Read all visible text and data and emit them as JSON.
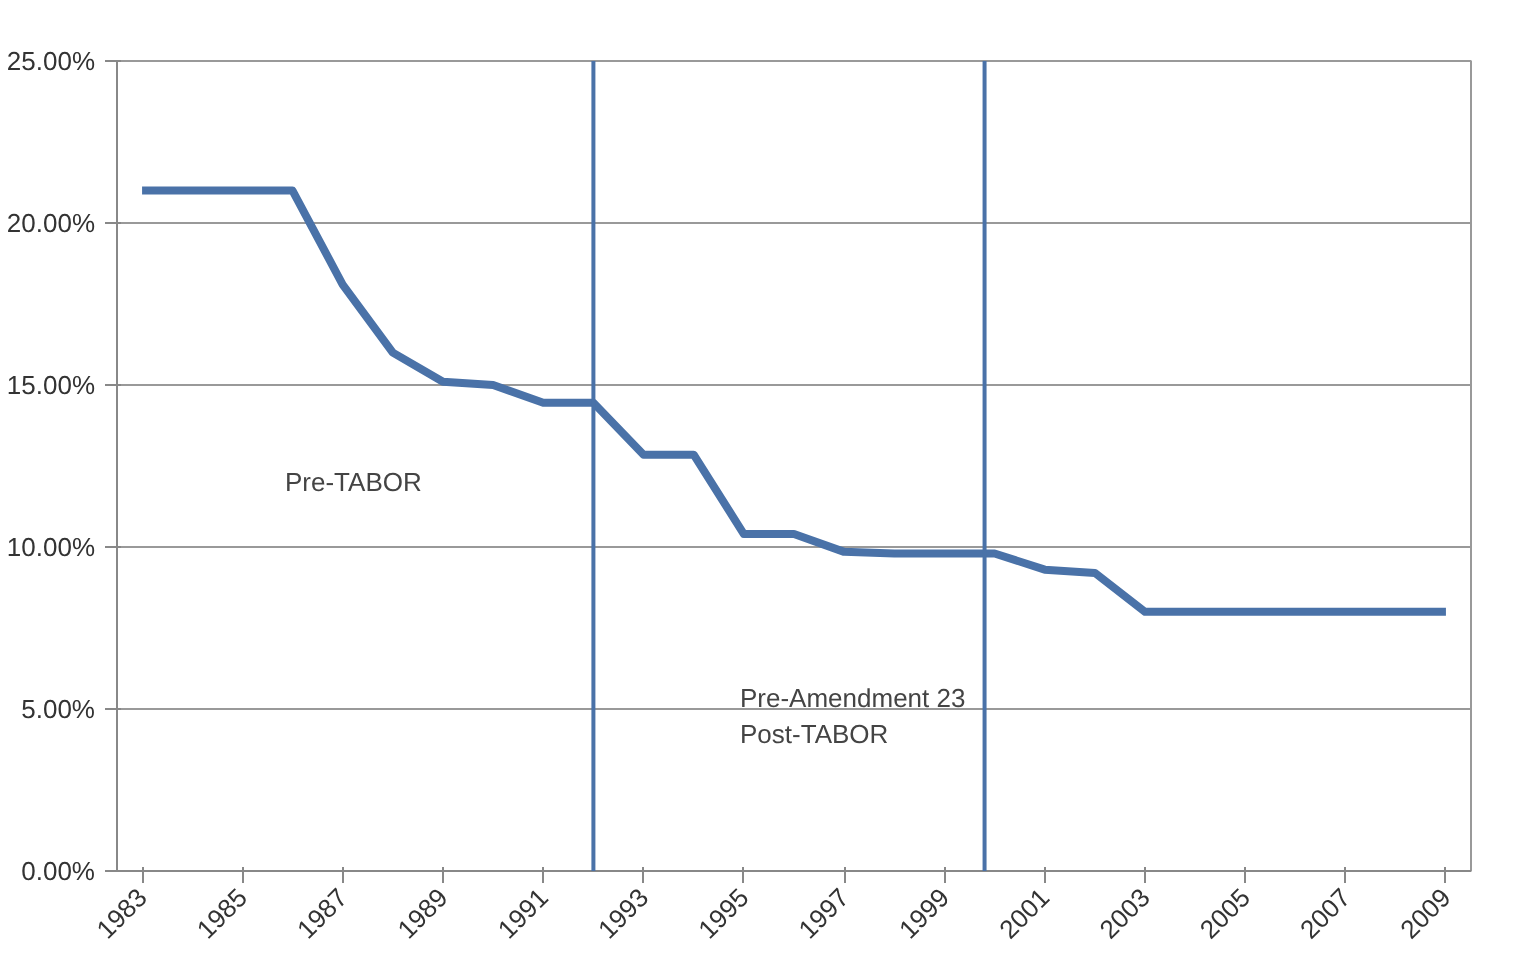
{
  "chart_data": {
    "type": "line",
    "x": [
      1983,
      1984,
      1985,
      1986,
      1987,
      1988,
      1989,
      1990,
      1991,
      1992,
      1993,
      1994,
      1995,
      1996,
      1997,
      1998,
      1999,
      2000,
      2001,
      2002,
      2003,
      2004,
      2005,
      2006,
      2007,
      2008,
      2009
    ],
    "series": [
      {
        "color": "#4a72a8",
        "values": [
          21.0,
          21.0,
          21.0,
          21.0,
          18.1,
          16.0,
          15.1,
          15.0,
          14.45,
          14.45,
          12.85,
          12.85,
          10.4,
          10.4,
          9.85,
          9.8,
          9.8,
          9.8,
          9.3,
          9.2,
          8.0,
          8.0,
          8.0,
          8.0,
          8.0,
          8.0,
          8.0
        ]
      }
    ],
    "xlim": [
      1982.5,
      2009.5
    ],
    "xticks": [
      1983,
      1985,
      1987,
      1989,
      1991,
      1993,
      1995,
      1997,
      1999,
      2001,
      2003,
      2005,
      2007,
      2009
    ],
    "ylim": [
      0,
      25
    ],
    "yticks": [
      {
        "value": 0,
        "label": "0.00%"
      },
      {
        "value": 5,
        "label": "5.00%"
      },
      {
        "value": 10,
        "label": "10.00%"
      },
      {
        "value": 15,
        "label": "15.00%"
      },
      {
        "value": 20,
        "label": "20.00%"
      },
      {
        "value": 25,
        "label": "25.00%"
      }
    ],
    "grid": "y",
    "ref_lines": [
      {
        "axis": "x",
        "value": 1992,
        "color": "#4a72a8"
      },
      {
        "axis": "x",
        "value": 1999.8,
        "color": "#4a72a8"
      }
    ],
    "annotations": [
      "Pre-TABOR",
      "Pre-Amendment 23\nPost-TABOR"
    ]
  }
}
